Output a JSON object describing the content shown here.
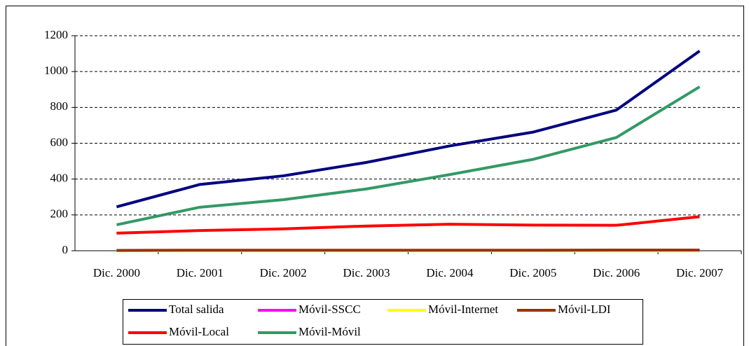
{
  "chart_data": {
    "type": "line",
    "categories": [
      "Dic. 2000",
      "Dic. 2001",
      "Dic. 2002",
      "Dic. 2003",
      "Dic. 2004",
      "Dic. 2005",
      "Dic. 2006",
      "Dic. 2007"
    ],
    "series": [
      {
        "name": "Total salida",
        "color": "#000080",
        "values": [
          245,
          370,
          418,
          493,
          585,
          662,
          785,
          1115
        ]
      },
      {
        "name": "Móvil-SSCC",
        "color": "#ff00ff",
        "values": [
          1,
          1,
          1,
          1,
          1,
          1,
          1,
          1
        ]
      },
      {
        "name": "Móvil-Internet",
        "color": "#ffff00",
        "values": [
          0,
          0,
          0,
          0,
          0,
          0,
          0,
          0
        ]
      },
      {
        "name": "Móvil-LDI",
        "color": "#993300",
        "values": [
          2,
          3,
          3,
          3,
          3,
          3,
          4,
          4
        ]
      },
      {
        "name": "Móvil-Local",
        "color": "#ff0000",
        "values": [
          98,
          113,
          122,
          138,
          148,
          143,
          142,
          190
        ]
      },
      {
        "name": "Móvil-Móvil",
        "color": "#339966",
        "values": [
          145,
          243,
          285,
          345,
          425,
          510,
          632,
          915
        ]
      }
    ],
    "ylim": [
      0,
      1200
    ],
    "yticks": [
      0,
      200,
      400,
      600,
      800,
      1000,
      1200
    ],
    "grid": true
  }
}
